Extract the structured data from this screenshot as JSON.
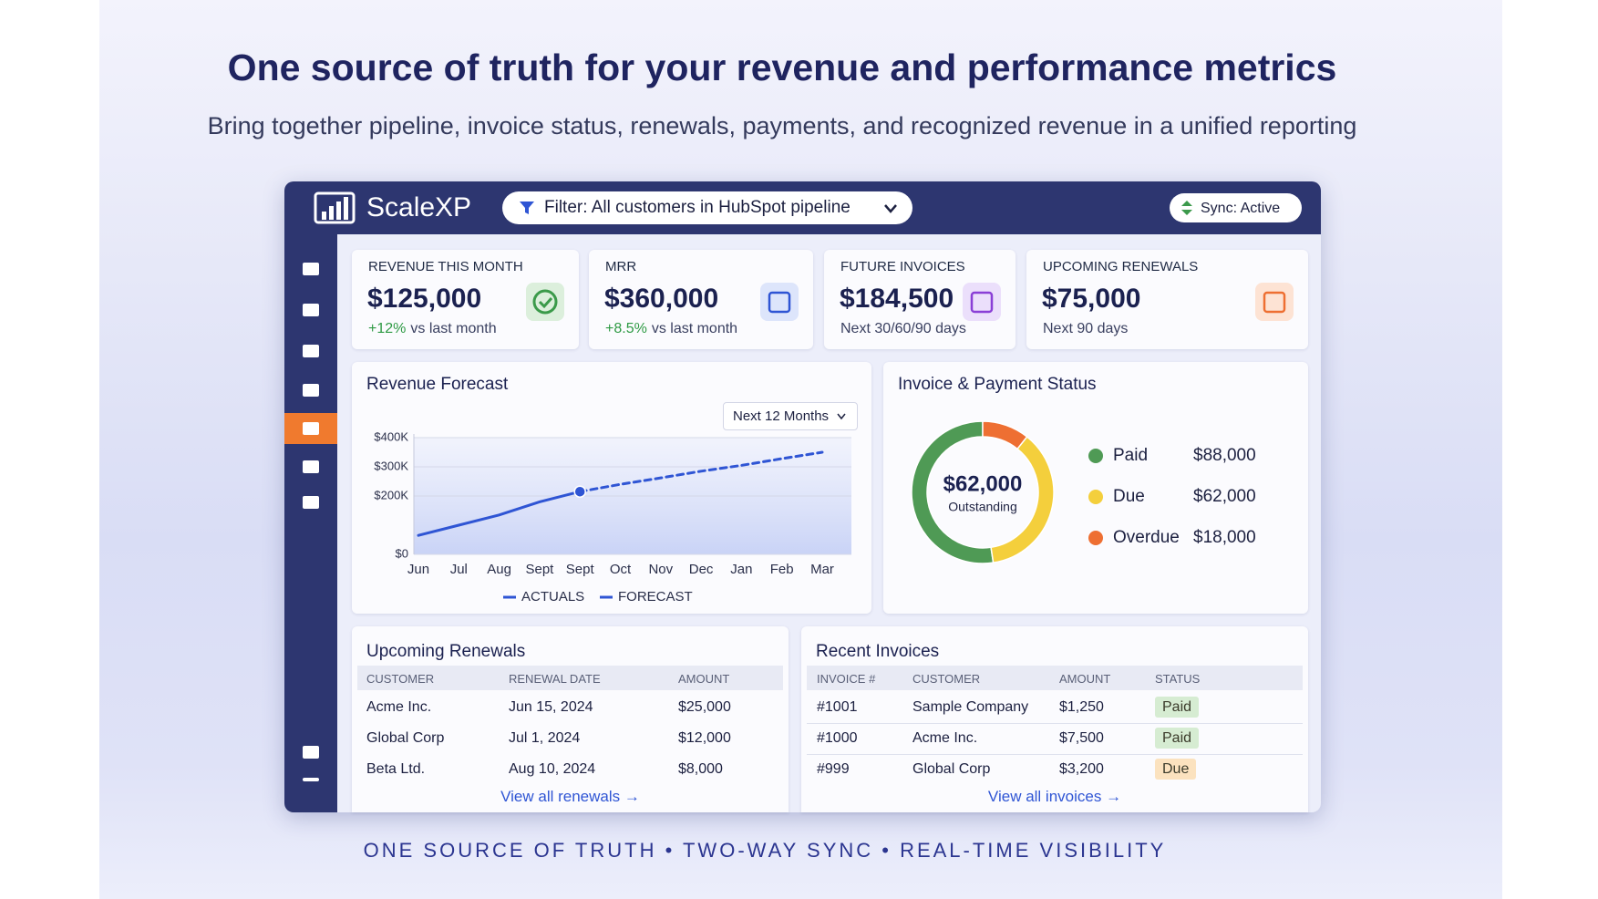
{
  "header": {
    "title": "One source of truth for your revenue and performance metrics",
    "subtitle": "Bring together pipeline, invoice status, renewals, payments, and recognized revenue in a unified reporting"
  },
  "app": {
    "brand": "ScaleXP",
    "filter": "Filter: All customers in HubSpot pipeline",
    "sync": "Sync: Active"
  },
  "kpis": [
    {
      "label": "REVENUE THIS MONTH",
      "value": "$125,000",
      "delta": "+12%",
      "note": "vs last month"
    },
    {
      "label": "MRR",
      "value": "$360,000",
      "delta": "+8.5%",
      "note": "vs last month"
    },
    {
      "label": "FUTURE INVOICES",
      "value": "$184,500",
      "note": "Next 30/60/90 days"
    },
    {
      "label": "UPCOMING RENEWALS",
      "value": "$75,000",
      "note": "Next 90 days"
    }
  ],
  "chart_data": [
    {
      "type": "line",
      "title": "Revenue Forecast",
      "period_selector": "Next 12 Months",
      "categories": [
        "Jun",
        "Jul",
        "Aug",
        "Sept",
        "Sept",
        "Oct",
        "Nov",
        "Dec",
        "Jan",
        "Feb",
        "Mar"
      ],
      "series": [
        {
          "name": "ACTUALS",
          "color": "#2f55d4",
          "dashed": false,
          "values": [
            65000,
            100000,
            135000,
            180000,
            215000,
            null,
            null,
            null,
            null,
            null,
            null
          ]
        },
        {
          "name": "FORECAST",
          "color": "#2f55d4",
          "dashed": true,
          "values": [
            null,
            null,
            null,
            null,
            215000,
            240000,
            262000,
            285000,
            305000,
            328000,
            350000
          ]
        }
      ],
      "ylim": [
        0,
        400000
      ],
      "yticks": [
        {
          "value": 0,
          "label": "$0"
        },
        {
          "value": 200000,
          "label": "$200K"
        },
        {
          "value": 300000,
          "label": "$300K"
        },
        {
          "value": 400000,
          "label": "$400K"
        }
      ],
      "grid": true
    },
    {
      "type": "donut",
      "title": "Invoice & Payment Status",
      "categories": [
        "Paid",
        "Due",
        "Overdue"
      ],
      "values": [
        88000,
        62000,
        18000
      ],
      "value_labels": [
        "$88,000",
        "$62,000",
        "$18,000"
      ],
      "colors": [
        "#4f9a55",
        "#f4cf3c",
        "#ee6f32"
      ],
      "center_value": "$62,000",
      "center_label": "Outstanding"
    }
  ],
  "renewals": {
    "title": "Upcoming Renewals",
    "columns": [
      "CUSTOMER",
      "RENEWAL DATE",
      "AMOUNT"
    ],
    "rows": [
      [
        "Acme Inc.",
        "Jun 15, 2024",
        "$25,000"
      ],
      [
        "Global Corp",
        "Jul 1, 2024",
        "$12,000"
      ],
      [
        "Beta Ltd.",
        "Aug 10, 2024",
        "$8,000"
      ]
    ],
    "link": "View all renewals →"
  },
  "invoices": {
    "title": "Recent Invoices",
    "columns": [
      "INVOICE #",
      "CUSTOMER",
      "AMOUNT",
      "STATUS"
    ],
    "rows": [
      [
        "#1001",
        "Sample Company",
        "$1,250",
        "Paid"
      ],
      [
        "#1000",
        "Acme Inc.",
        "$7,500",
        "Paid"
      ],
      [
        "#999",
        "Global Corp",
        "$3,200",
        "Due"
      ]
    ],
    "status_colors": [
      "#d6ecd2",
      "#d6ecd2",
      "#fbe2bf"
    ],
    "link": "View all invoices →"
  },
  "tagline": "ONE SOURCE OF TRUTH • TWO-WAY SYNC • REAL-TIME VISIBILITY"
}
